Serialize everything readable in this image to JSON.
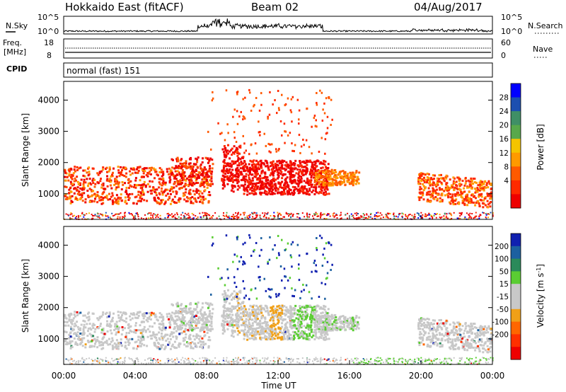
{
  "header": {
    "radar": "Hokkaido East (fitACF)",
    "beam": "Beam 02",
    "date": "04/Aug/2017"
  },
  "status_panels": {
    "nsky_label": "N.Sky",
    "nsky_ticks": [
      "10^5",
      "10^0"
    ],
    "nsearch_label": "N.Search",
    "nsearch_ticks": [
      "10^5",
      "10^0"
    ],
    "freq_label_1": "Freq.",
    "freq_label_2": "[MHz]",
    "freq_ticks": [
      "18",
      "8"
    ],
    "nave_label": "Nave",
    "nave_ticks": [
      "60",
      "0"
    ],
    "cpid_label": "CPID",
    "cpid_text": "normal (fast) 151"
  },
  "colors": {
    "power_scale": [
      "#0000ff",
      "#1c4fb0",
      "#3f8f66",
      "#58a84b",
      "#f5c400",
      "#ff9a00",
      "#ff5a00",
      "#ff2a00",
      "#ee0000"
    ],
    "velocity_scale": [
      "#1020b0",
      "#1c60a0",
      "#2a8a5a",
      "#5acd32",
      "#c8c8c8",
      "#c8c8c8",
      "#f0a018",
      "#ff6600",
      "#ff3000",
      "#ee0000"
    ]
  },
  "chart_data": [
    {
      "type": "heatmap",
      "name": "power",
      "ylabel": "Slant Range [km]",
      "yticks": [
        1000,
        2000,
        3000,
        4000
      ],
      "ylim": [
        180,
        4600
      ],
      "xlim": [
        0,
        24
      ],
      "colorbar": {
        "label": "Power [dB]",
        "ticks": [
          "28",
          "24",
          "20",
          "16",
          "12",
          "8",
          "4"
        ],
        "range": [
          0,
          30
        ]
      }
    },
    {
      "type": "heatmap",
      "name": "velocity",
      "ylabel": "Slant Range [km]",
      "yticks": [
        1000,
        2000,
        3000,
        4000
      ],
      "ylim": [
        180,
        4600
      ],
      "xlim": [
        0,
        24
      ],
      "xticks": [
        "00:00",
        "04:00",
        "08:00",
        "12:00",
        "16:00",
        "20:00",
        "00:00"
      ],
      "xlabel": "Time UT",
      "colorbar": {
        "label": "Velocity [m s^-1]",
        "ticks": [
          "200",
          "100",
          "50",
          "15",
          "-15",
          "-50",
          "-100",
          "-200"
        ],
        "range": [
          -250,
          250
        ]
      }
    }
  ]
}
